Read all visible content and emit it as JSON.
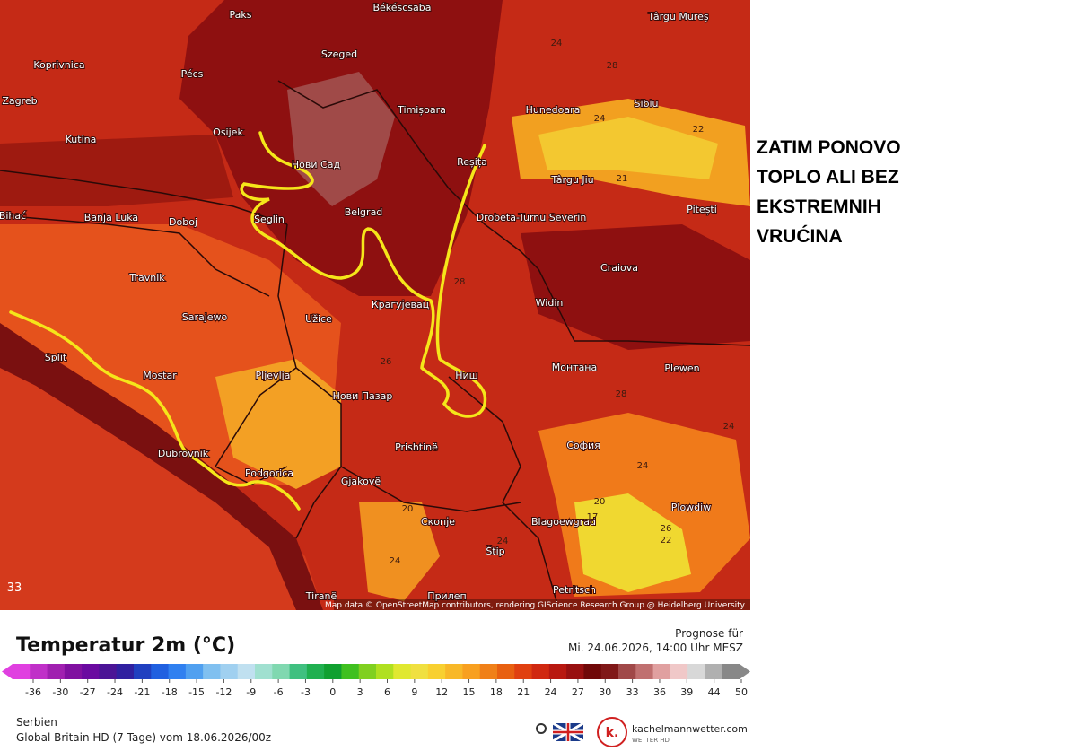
{
  "map": {
    "cities": [
      "Békéscsaba",
      "Paks",
      "Târgu Mureș",
      "Koprivnica",
      "Szeged",
      "Pécs",
      "Zagreb",
      "Timișoara",
      "Hunedoara",
      "Sibiu",
      "Osijek",
      "Kutina",
      "Нови Сад",
      "Reșița",
      "Târgu Jiu",
      "Belgrad",
      "Bihać",
      "Banja Luka",
      "Doboj",
      "Šeglin",
      "Drobeta-Turnu Severin",
      "Pitești",
      "Craiova",
      "Travnik",
      "Widin",
      "Sarajewo",
      "Užice",
      "Крагујевац",
      "Split",
      "Mostar",
      "Pljevlja",
      "Ниш",
      "Монтана",
      "Plewen",
      "Нови Пазар",
      "София",
      "Dubrovnik",
      "Podgorica",
      "Prishtinë",
      "Gjakovë",
      "Plowdiw",
      "Скопје",
      "Blagoewgrad",
      "Štip",
      "Petritsch",
      "Tiranë",
      "Прилеп"
    ],
    "isolines": [
      "24",
      "28",
      "24",
      "22",
      "21",
      "28",
      "26",
      "28",
      "24",
      "24",
      "20",
      "17",
      "26",
      "22",
      "24",
      "20",
      "24",
      "33"
    ],
    "attribution": "Map data © OpenStreetMap contributors, rendering GIScience Research Group @ Heidelberg University"
  },
  "annotation": [
    "ZATIM PONOVO",
    "TOPLO ALI BEZ",
    "EKSTREMNIH",
    "VRUĆINA"
  ],
  "legend": {
    "title": "Temperatur 2m (°C)",
    "forecast_label": "Prognose für",
    "forecast_time": "Mi. 24.06.2026, 14:00 Uhr MESZ",
    "ticks": [
      -36,
      -30,
      -27,
      -24,
      -21,
      -18,
      -15,
      -12,
      -9,
      -6,
      -3,
      0,
      3,
      6,
      9,
      12,
      15,
      18,
      21,
      24,
      27,
      30,
      33,
      36,
      39,
      44,
      50
    ],
    "colors": [
      "#e040e0",
      "#c030c8",
      "#a020b0",
      "#8010a0",
      "#6a0aa0",
      "#4b1496",
      "#3020a0",
      "#2040c0",
      "#2060e0",
      "#3080f0",
      "#50a0f0",
      "#80c0f0",
      "#a0d0f0",
      "#c0e0f0",
      "#a0e0d0",
      "#80d8b0",
      "#40c080",
      "#20b050",
      "#10a030",
      "#40c020",
      "#80d020",
      "#b0e020",
      "#e0e830",
      "#f0e040",
      "#f8d030",
      "#f8b828",
      "#f8a020",
      "#f08018",
      "#e86010",
      "#e04010",
      "#d02810",
      "#b81810",
      "#981010",
      "#700808",
      "#801818",
      "#a04848",
      "#c07070",
      "#e0a0a0",
      "#f0c8c8",
      "#d8d8d8",
      "#b0b0b0",
      "#888888"
    ],
    "region": "Serbien",
    "model": "Global Britain HD (7 Tage) vom 18.06.2026/00z",
    "brand": "kachelmannwetter.com",
    "brand_sub": "WETTER HD"
  }
}
